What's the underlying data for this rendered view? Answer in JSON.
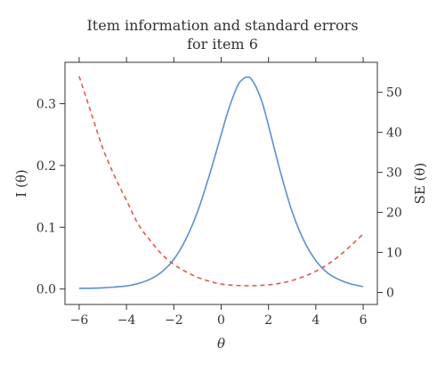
{
  "chart_data": {
    "type": "line",
    "title_lines": [
      "Item information and standard errors",
      "for item 6"
    ],
    "xlabel": "θ",
    "ylabel_left": "I (θ)",
    "ylabel_right": "SE (θ)",
    "xlim": [
      -6.6,
      6.6
    ],
    "ylim_left": [
      -0.025,
      0.367
    ],
    "ylim_right": [
      -3.0,
      57.5
    ],
    "x_ticks": [
      -6,
      -4,
      -2,
      0,
      2,
      4,
      6
    ],
    "x_tick_labels": [
      "−6",
      "−4",
      "−2",
      "0",
      "2",
      "4",
      "6"
    ],
    "y_left_ticks": [
      0.0,
      0.1,
      0.2,
      0.3
    ],
    "y_left_tick_labels": [
      "0.0",
      "0.1",
      "0.2",
      "0.3"
    ],
    "y_right_ticks": [
      0,
      10,
      20,
      30,
      40,
      50
    ],
    "y_right_tick_labels": [
      "0",
      "10",
      "20",
      "30",
      "40",
      "50"
    ],
    "grid": false,
    "series": [
      {
        "axis": "left",
        "style": "solid",
        "color": "#5b8fd6",
        "x": [
          -6,
          -5,
          -4,
          -3.5,
          -3,
          -2.5,
          -2,
          -1.5,
          -1,
          -0.5,
          0,
          0.25,
          0.5,
          0.75,
          1.0,
          1.1,
          1.25,
          1.5,
          1.75,
          2,
          2.5,
          3,
          3.5,
          4,
          4.5,
          5,
          5.5,
          6
        ],
        "y": [
          0.001,
          0.002,
          0.005,
          0.009,
          0.016,
          0.028,
          0.048,
          0.08,
          0.125,
          0.184,
          0.25,
          0.283,
          0.311,
          0.333,
          0.342,
          0.343,
          0.341,
          0.325,
          0.3,
          0.265,
          0.19,
          0.125,
          0.078,
          0.046,
          0.026,
          0.015,
          0.008,
          0.004
        ]
      },
      {
        "axis": "right",
        "style": "dashed",
        "color": "#e05a4a",
        "x": [
          -6,
          -5.5,
          -5,
          -4.5,
          -4,
          -3.5,
          -3,
          -2.5,
          -2,
          -1.5,
          -1,
          -0.5,
          0,
          0.5,
          1,
          1.5,
          2,
          2.5,
          3,
          3.5,
          4,
          4.5,
          5,
          5.5,
          6
        ],
        "y": [
          54,
          45,
          36,
          29,
          23,
          17,
          13,
          9.5,
          7.0,
          5.2,
          3.8,
          2.8,
          2.1,
          1.8,
          1.7,
          1.7,
          1.9,
          2.3,
          3.0,
          4.0,
          5.3,
          7.0,
          9.2,
          11.8,
          14.6
        ]
      }
    ]
  }
}
